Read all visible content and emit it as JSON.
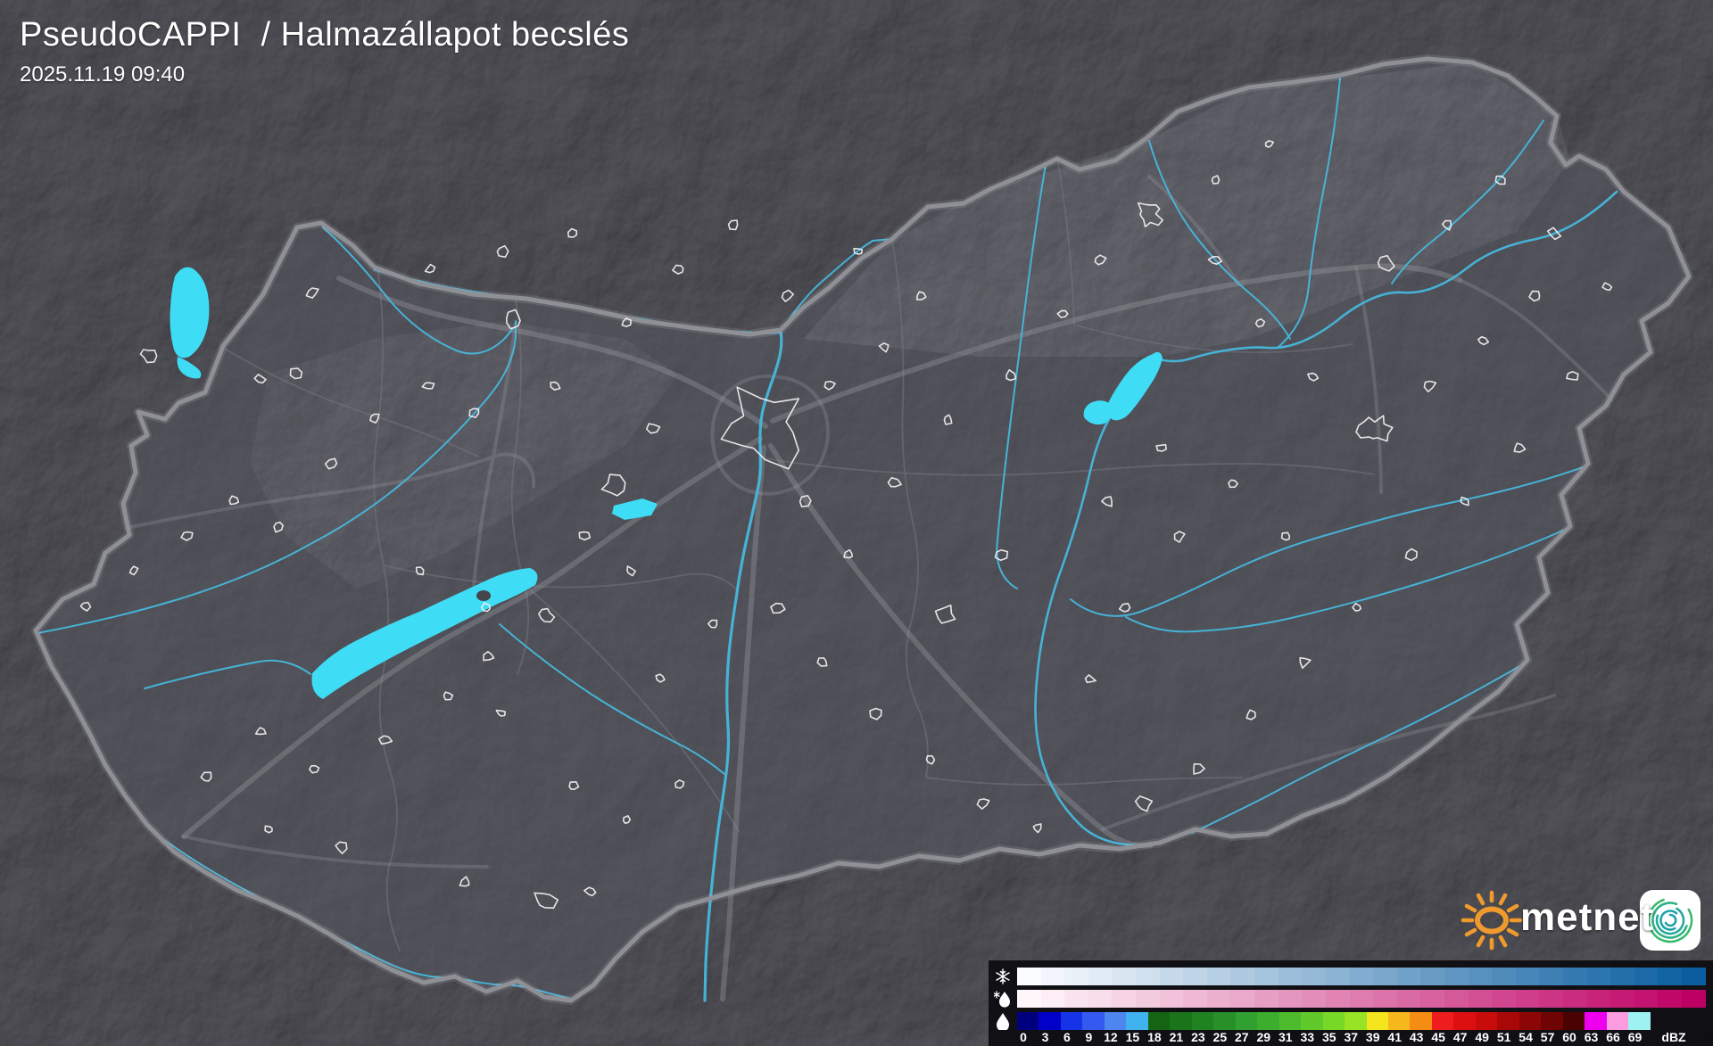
{
  "header": {
    "title": "PseudoCAPPI  / Halmazállapot becslés",
    "timestamp": "2025.11.19 09:40"
  },
  "branding": {
    "logo_text": "metnet",
    "sun_color": "#F09A2E",
    "app_icon_bg": "#FFFFFF",
    "app_icon_spiral": [
      "#3CB96E",
      "#2EB184",
      "#26A99A",
      "#1FA3A9"
    ]
  },
  "legend": {
    "unit": "dBZ",
    "tick_labels": [
      "0",
      "3",
      "6",
      "9",
      "12",
      "15",
      "18",
      "21",
      "23",
      "25",
      "27",
      "29",
      "31",
      "33",
      "35",
      "37",
      "39",
      "41",
      "43",
      "45",
      "47",
      "49",
      "51",
      "54",
      "57",
      "60",
      "63",
      "66",
      "69"
    ],
    "rows": [
      {
        "id": "snow",
        "icon": "snowflake-icon",
        "colors": [
          "#FBFCFF",
          "#F2F6FC",
          "#EAF1F8",
          "#E1EBF5",
          "#D9E5F1",
          "#D0E0EE",
          "#C7DAEB",
          "#BFD5E7",
          "#B6CFE4",
          "#AEC9E0",
          "#A5C4DD",
          "#9CBEDA",
          "#94B8D6",
          "#8BB3D3",
          "#83ADD0",
          "#7AA7CC",
          "#71A2C9",
          "#699CC5",
          "#6096C2",
          "#5791BF",
          "#4F8BBB",
          "#4686B8",
          "#3E80B4",
          "#357AB1",
          "#2C75AE",
          "#246FAA",
          "#1B69A7",
          "#1364A3",
          "#0A5EA0"
        ]
      },
      {
        "id": "sleet",
        "icon": "sleet-icon",
        "colors": [
          "#FFF7FA",
          "#FDEEF5",
          "#FAE5EF",
          "#F8DDEA",
          "#F6D4E5",
          "#F3CBDF",
          "#F1C2DA",
          "#EFB9D5",
          "#ECB0CF",
          "#EAA8CA",
          "#E89FC4",
          "#E596BF",
          "#E38DBA",
          "#E184B4",
          "#DF7CAF",
          "#DC73AA",
          "#DA6AA4",
          "#D8619F",
          "#D55899",
          "#D34F94",
          "#D1478F",
          "#CE3E8A",
          "#CC3584",
          "#CA2C7F",
          "#C82379",
          "#C51B74",
          "#C3126F",
          "#C10969",
          "#BE0064"
        ]
      },
      {
        "id": "rain",
        "icon": "raindrop-icon",
        "colors": [
          "#00007F",
          "#0000C8",
          "#1733E8",
          "#3359F0",
          "#4E86F0",
          "#41B2F0",
          "#146414",
          "#1A741A",
          "#218221",
          "#289028",
          "#30A030",
          "#3BAE2E",
          "#4DBC2C",
          "#60CA2A",
          "#78D828",
          "#97E324",
          "#F5E51E",
          "#F7B81E",
          "#F58C14",
          "#EE1C1C",
          "#DC1010",
          "#C80C0C",
          "#A80808",
          "#8C0606",
          "#700404",
          "#4A0202",
          "#EE00EE",
          "#FC9BE0",
          "#9FF2F2"
        ]
      }
    ]
  },
  "map": {
    "region": "Hungary weather radar composite",
    "colors": {
      "background": "#141418",
      "country_fill": "#45454D",
      "border": "#8F8F96",
      "border_halo": "#C9C9D2",
      "county_line": "#75757D",
      "road": "#A8A8B0",
      "river": "#46B8DC",
      "lake": "#3FDCF6",
      "city_outline": "#F2F2F4"
    }
  }
}
